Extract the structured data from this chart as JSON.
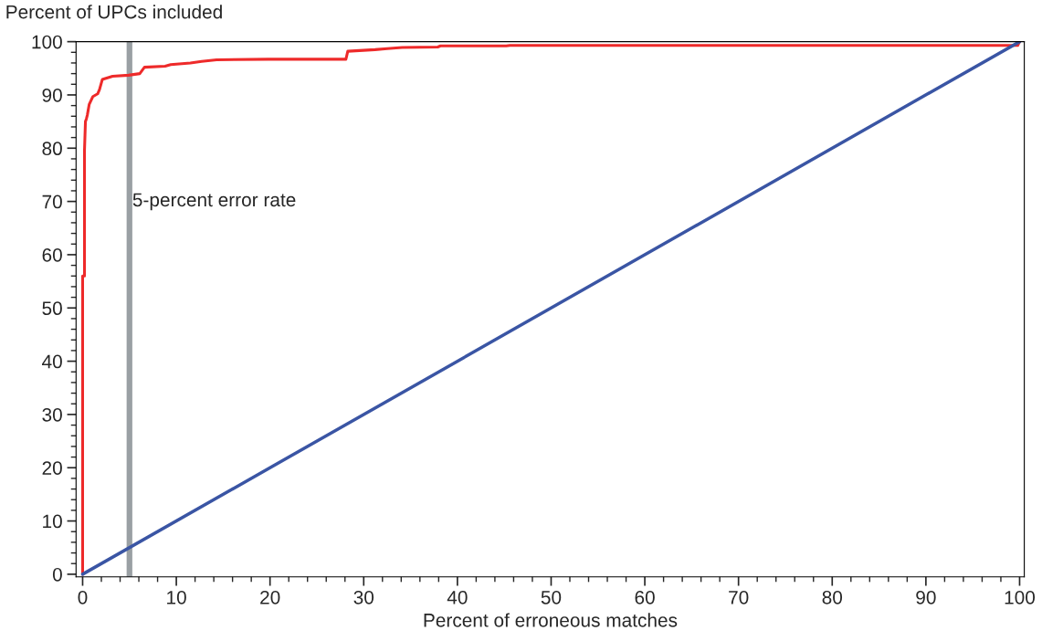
{
  "chart_data": {
    "type": "line",
    "xlabel": "Percent of erroneous matches",
    "ylabel": "Percent of UPCs included",
    "series": [
      {
        "color": "#ee2a2a",
        "x": [
          0,
          0,
          0.2,
          0.2,
          0.3,
          0.4,
          0.5,
          0.7,
          1.1,
          1.6,
          1.8,
          2.1,
          3.2,
          4.9,
          6.1,
          6.6,
          8.8,
          9.4,
          11.5,
          12.7,
          14.3,
          19.8,
          28.1,
          28.3,
          31.2,
          32.5,
          34.1,
          37.9,
          38.2,
          45.2,
          45.6,
          99.8,
          100
        ],
        "values": [
          0,
          56,
          56,
          79.6,
          85,
          85.5,
          86.2,
          88.2,
          89.7,
          90.2,
          91,
          92.9,
          93.5,
          93.7,
          94,
          95.2,
          95.4,
          95.7,
          96,
          96.3,
          96.6,
          96.7,
          96.7,
          98.2,
          98.5,
          98.7,
          98.9,
          99,
          99.2,
          99.2,
          99.3,
          99.3,
          100
        ]
      },
      {
        "color": "#3a55a4",
        "x": [
          0,
          100
        ],
        "values": [
          0,
          100
        ]
      }
    ],
    "xlim": [
      -0.7,
      100.5
    ],
    "ylim": [
      -0.5,
      100
    ],
    "xticks": [
      0,
      10,
      20,
      30,
      40,
      50,
      60,
      70,
      80,
      90,
      100
    ],
    "yticks": [
      0,
      10,
      20,
      30,
      40,
      50,
      60,
      70,
      80,
      90,
      100
    ],
    "ref_lines": [
      {
        "axis": "x",
        "value": 5,
        "label": "5-percent error rate",
        "color": "#9aa0a4"
      }
    ],
    "marker": "none",
    "line_style": "solid",
    "grid": false,
    "legend": false
  }
}
